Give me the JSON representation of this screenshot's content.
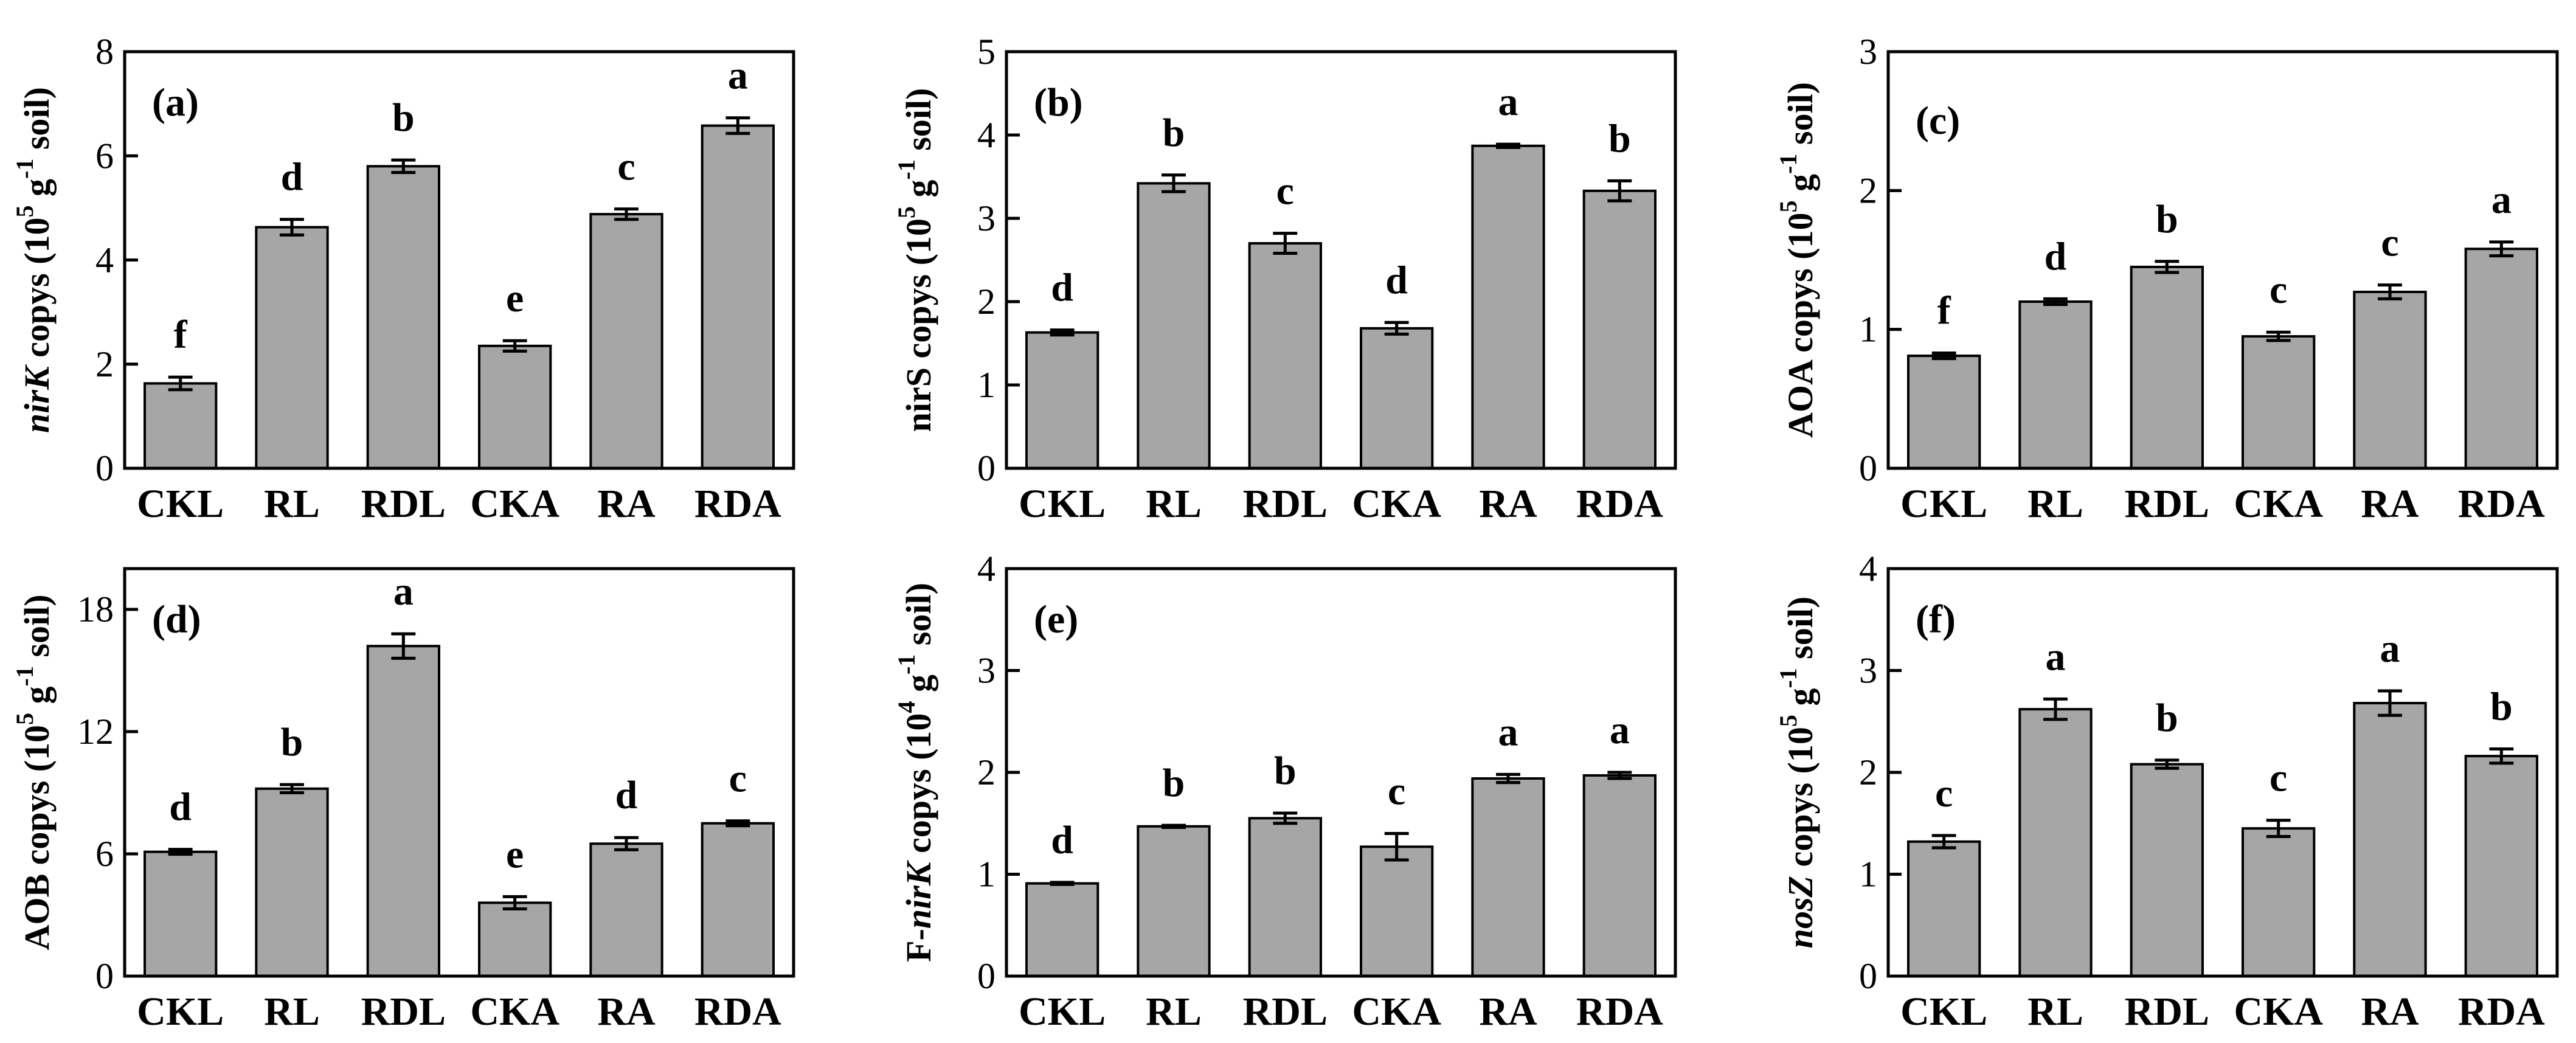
{
  "chart_data": [
    {
      "type": "bar",
      "panel": "(a)",
      "categories": [
        "CKL",
        "RL",
        "RDL",
        "CKA",
        "RA",
        "RDA"
      ],
      "values": [
        1.63,
        4.63,
        5.8,
        2.35,
        4.88,
        6.58
      ],
      "errors": [
        0.12,
        0.15,
        0.12,
        0.1,
        0.1,
        0.15
      ],
      "letters": [
        "f",
        "d",
        "b",
        "e",
        "c",
        "a"
      ],
      "ylabel_pre": "",
      "ylabel_ital": "nirK",
      "ylabel_post": " copys (10",
      "ylabel_exp1": "5",
      "ylabel_mid": " g",
      "ylabel_exp2": "-1",
      "ylabel_end": " soil)",
      "ylim": [
        0,
        8
      ],
      "yticks": [
        0,
        2,
        4,
        6,
        8
      ]
    },
    {
      "type": "bar",
      "panel": "(b)",
      "categories": [
        "CKL",
        "RL",
        "RDL",
        "CKA",
        "RA",
        "RDA"
      ],
      "values": [
        1.63,
        3.42,
        2.7,
        1.68,
        3.87,
        3.33
      ],
      "errors": [
        0.03,
        0.1,
        0.12,
        0.07,
        0.02,
        0.12
      ],
      "letters": [
        "d",
        "b",
        "c",
        "d",
        "a",
        "b"
      ],
      "ylabel_pre": "nirS copys (10",
      "ylabel_ital": "",
      "ylabel_post": "",
      "ylabel_exp1": "5",
      "ylabel_mid": " g",
      "ylabel_exp2": "-1",
      "ylabel_end": " soil)",
      "ylim": [
        0,
        5
      ],
      "yticks": [
        0,
        1,
        2,
        3,
        4,
        5
      ]
    },
    {
      "type": "bar",
      "panel": "(c)",
      "categories": [
        "CKL",
        "RL",
        "RDL",
        "CKA",
        "RA",
        "RDA"
      ],
      "values": [
        0.81,
        1.2,
        1.45,
        0.95,
        1.27,
        1.58
      ],
      "errors": [
        0.02,
        0.02,
        0.04,
        0.03,
        0.05,
        0.05
      ],
      "letters": [
        "f",
        "d",
        "b",
        "c",
        "c",
        "a"
      ],
      "ylabel_pre": "AOA copys (10",
      "ylabel_ital": "",
      "ylabel_post": "",
      "ylabel_exp1": "5",
      "ylabel_mid": " g",
      "ylabel_exp2": "-1",
      "ylabel_end": " soil)",
      "ylim": [
        0,
        3
      ],
      "yticks": [
        0,
        1,
        2,
        3
      ]
    },
    {
      "type": "bar",
      "panel": "(d)",
      "categories": [
        "CKL",
        "RL",
        "RDL",
        "CKA",
        "RA",
        "RDA"
      ],
      "values": [
        6.1,
        9.2,
        16.2,
        3.6,
        6.5,
        7.5
      ],
      "errors": [
        0.12,
        0.2,
        0.6,
        0.3,
        0.3,
        0.12
      ],
      "letters": [
        "d",
        "b",
        "a",
        "e",
        "d",
        "c"
      ],
      "ylabel_pre": "AOB copys (10",
      "ylabel_ital": "",
      "ylabel_post": "",
      "ylabel_exp1": "5",
      "ylabel_mid": " g",
      "ylabel_exp2": "-1",
      "ylabel_end": " soil)",
      "ylim": [
        0,
        20
      ],
      "yticks": [
        0,
        6,
        12,
        18
      ]
    },
    {
      "type": "bar",
      "panel": "(e)",
      "categories": [
        "CKL",
        "RL",
        "RDL",
        "CKA",
        "RA",
        "RDA"
      ],
      "values": [
        0.91,
        1.47,
        1.55,
        1.27,
        1.94,
        1.97
      ],
      "errors": [
        0.01,
        0.01,
        0.05,
        0.13,
        0.04,
        0.03
      ],
      "letters": [
        "d",
        "b",
        "b",
        "c",
        "a",
        "a"
      ],
      "ylabel_pre": "F-",
      "ylabel_ital": "nirK",
      "ylabel_post": " copys (10",
      "ylabel_exp1": "4",
      "ylabel_mid": " g",
      "ylabel_exp2": "-1",
      "ylabel_end": " soil)",
      "ylim": [
        0,
        4
      ],
      "yticks": [
        0,
        1,
        2,
        3,
        4
      ]
    },
    {
      "type": "bar",
      "panel": "(f)",
      "categories": [
        "CKL",
        "RL",
        "RDL",
        "CKA",
        "RA",
        "RDA"
      ],
      "values": [
        1.32,
        2.62,
        2.08,
        1.45,
        2.68,
        2.16
      ],
      "errors": [
        0.06,
        0.1,
        0.04,
        0.08,
        0.12,
        0.07
      ],
      "letters": [
        "c",
        "a",
        "b",
        "c",
        "a",
        "b"
      ],
      "ylabel_pre": "",
      "ylabel_ital": "nosZ",
      "ylabel_post": " copys (10",
      "ylabel_exp1": "5",
      "ylabel_mid": " g",
      "ylabel_exp2": "-1",
      "ylabel_end": " soil)",
      "ylim": [
        0,
        4
      ],
      "yticks": [
        0,
        1,
        2,
        3,
        4
      ]
    }
  ]
}
